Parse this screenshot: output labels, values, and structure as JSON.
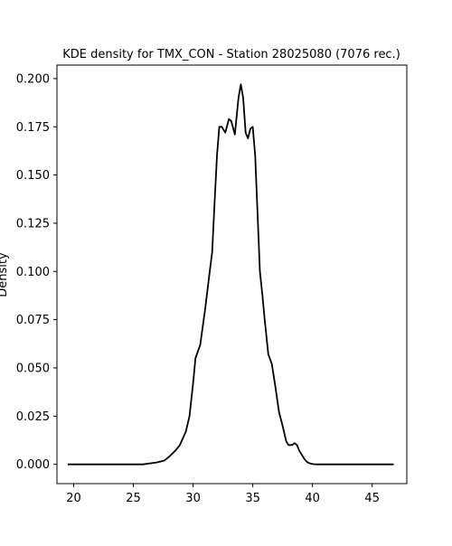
{
  "chart_data": {
    "type": "line",
    "title": "KDE density for TMX_CON - Station 28025080 (7076 rec.)",
    "xlabel": "",
    "ylabel": "Density",
    "xlim": [
      18.6,
      47.9
    ],
    "ylim": [
      -0.01,
      0.207
    ],
    "xticks": [
      20,
      25,
      30,
      35,
      40,
      45
    ],
    "yticks": [
      0.0,
      0.025,
      0.05,
      0.075,
      0.1,
      0.125,
      0.15,
      0.175,
      0.2
    ],
    "ytick_labels": [
      "0.000",
      "0.025",
      "0.050",
      "0.075",
      "0.100",
      "0.125",
      "0.150",
      "0.175",
      "0.200"
    ],
    "grid": false,
    "legend": "none",
    "line_color": "#000000",
    "series": [
      {
        "x": [
          19.5,
          25.8,
          27.0,
          27.6,
          28.0,
          28.5,
          28.9,
          29.4,
          29.7,
          30.0,
          30.2,
          30.6,
          31.0,
          31.3,
          31.6,
          31.8,
          32.0,
          32.2,
          32.4,
          32.7,
          33.0,
          33.2,
          33.5,
          33.8,
          34.0,
          34.2,
          34.4,
          34.6,
          34.8,
          35.0,
          35.2,
          35.4,
          35.6,
          35.8,
          36.0,
          36.3,
          36.6,
          36.9,
          37.2,
          37.5,
          37.8,
          38.0,
          38.3,
          38.5,
          38.7,
          38.9,
          39.1,
          39.3,
          39.5,
          39.7,
          39.9,
          40.1,
          40.4,
          40.8,
          42.0,
          46.8
        ],
        "y": [
          0.0,
          0.0,
          0.001,
          0.002,
          0.004,
          0.007,
          0.01,
          0.017,
          0.025,
          0.042,
          0.055,
          0.062,
          0.08,
          0.095,
          0.11,
          0.135,
          0.16,
          0.175,
          0.175,
          0.172,
          0.179,
          0.178,
          0.171,
          0.19,
          0.197,
          0.19,
          0.172,
          0.169,
          0.174,
          0.175,
          0.16,
          0.13,
          0.1,
          0.088,
          0.075,
          0.057,
          0.052,
          0.04,
          0.027,
          0.02,
          0.012,
          0.01,
          0.01,
          0.011,
          0.01,
          0.007,
          0.005,
          0.003,
          0.0015,
          0.0007,
          0.0003,
          0.0001,
          0.0,
          0.0,
          0.0,
          0.0
        ]
      }
    ]
  }
}
